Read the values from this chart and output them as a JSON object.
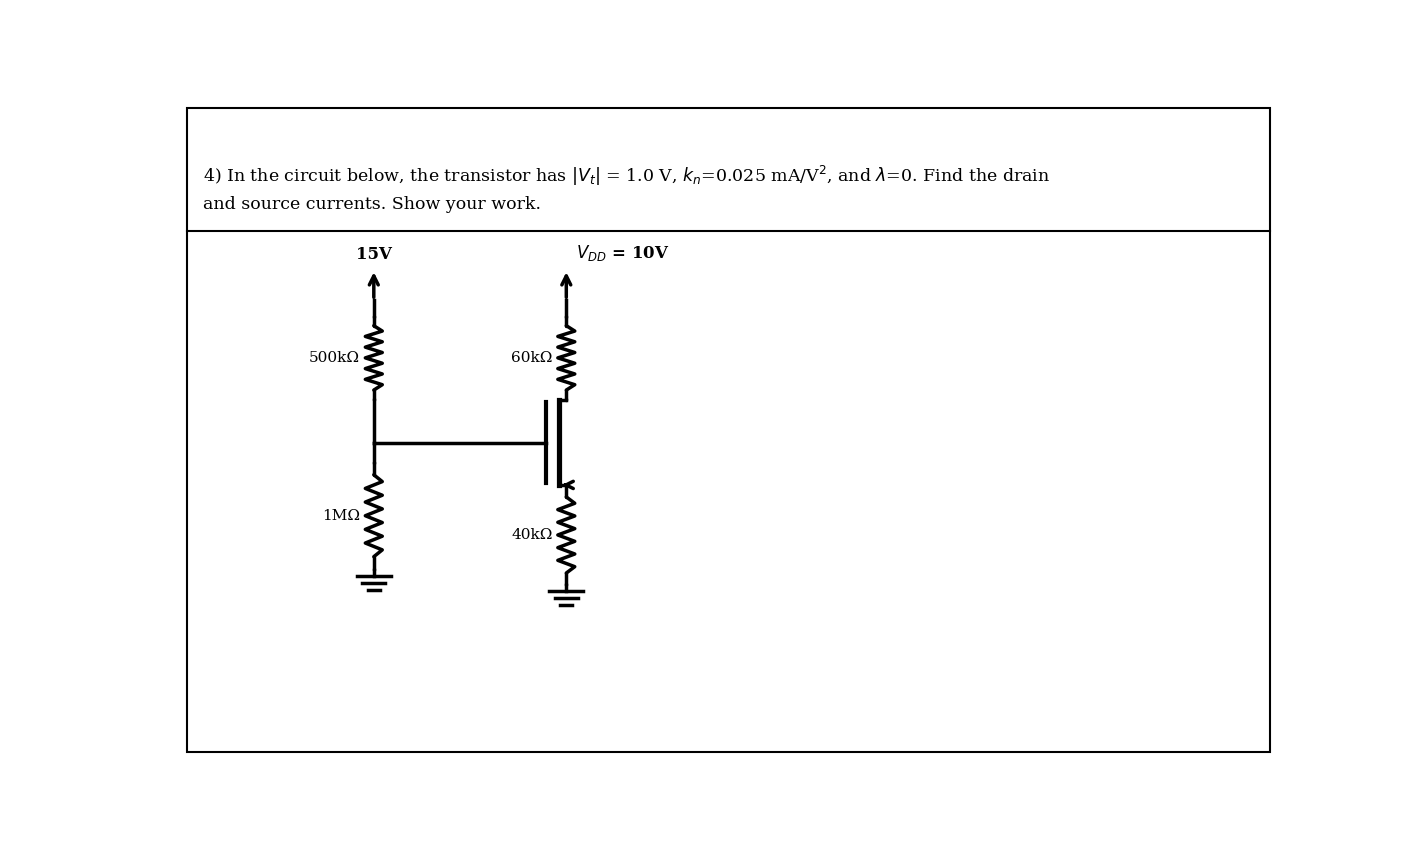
{
  "bg_color": "#ffffff",
  "lw": 2.5,
  "wire_color": "#000000",
  "label_15V": "15V",
  "label_VDD": "V",
  "label_VDD_sub": "DD",
  "label_VDD_val": " = 10V",
  "label_R1": "500kΩ",
  "label_R2": "1MΩ",
  "label_RD": "60kΩ",
  "label_RS": "40kΩ",
  "title_line1": "4) In the circuit below, the transistor has |V",
  "title_line1b": "t",
  "title_line1c": "| = 1.0 V, k",
  "title_line1d": "n",
  "title_line1e": "=0.025 mA/V",
  "title_line1f": "2",
  "title_line1g": ", and λ=0. Find the drain",
  "title_line2": "and source currents. Show your work."
}
